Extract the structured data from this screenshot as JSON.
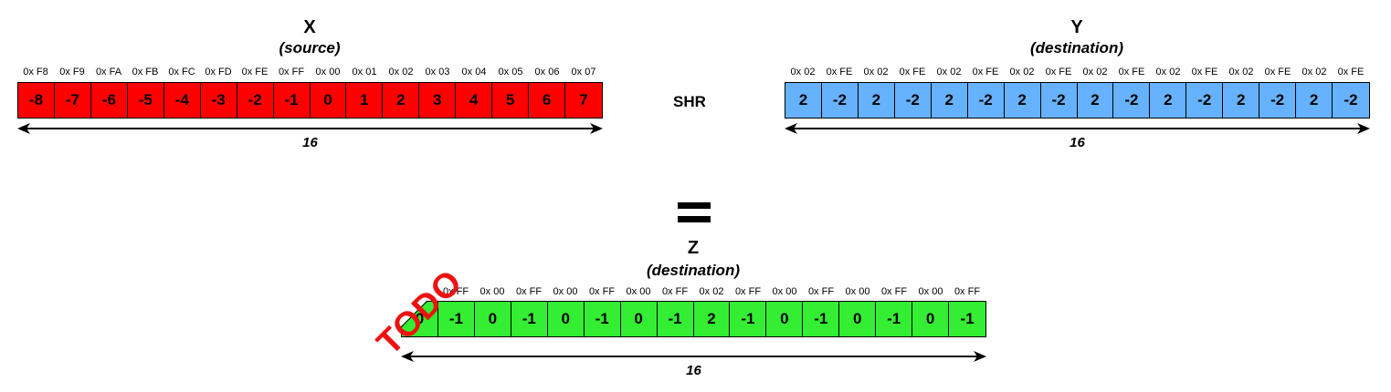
{
  "colors": {
    "x_fill": "#ff0000",
    "y_fill": "#66b2ff",
    "z_fill": "#33ee33",
    "todo": "#ee1111"
  },
  "x": {
    "title": "X",
    "subtitle": "(source)",
    "hex": [
      "0x F8",
      "0x F9",
      "0x FA",
      "0x FB",
      "0x FC",
      "0x FD",
      "0x FE",
      "0x FF",
      "0x 00",
      "0x 01",
      "0x 02",
      "0x 03",
      "0x 04",
      "0x 05",
      "0x 06",
      "0x 07"
    ],
    "values": [
      "-8",
      "-7",
      "-6",
      "-5",
      "-4",
      "-3",
      "-2",
      "-1",
      "0",
      "1",
      "2",
      "3",
      "4",
      "5",
      "6",
      "7"
    ],
    "count": "16"
  },
  "operation": "SHR",
  "y": {
    "title": "Y",
    "subtitle": "(destination)",
    "hex": [
      "0x 02",
      "0x FE",
      "0x 02",
      "0x FE",
      "0x 02",
      "0x FE",
      "0x 02",
      "0x FE",
      "0x 02",
      "0x FE",
      "0x 02",
      "0x FE",
      "0x 02",
      "0x FE",
      "0x 02",
      "0x FE"
    ],
    "values": [
      "2",
      "-2",
      "2",
      "-2",
      "2",
      "-2",
      "2",
      "-2",
      "2",
      "-2",
      "2",
      "-2",
      "2",
      "-2",
      "2",
      "-2"
    ],
    "count": "16"
  },
  "z": {
    "title": "Z",
    "subtitle": "(destination)",
    "hex": [
      "",
      "0x FF",
      "0x 00",
      "0x FF",
      "0x 00",
      "0x FF",
      "0x 00",
      "0x FF",
      "0x 02",
      "0x FF",
      "0x 00",
      "0x FF",
      "0x 00",
      "0x FF",
      "0x 00",
      "0x FF"
    ],
    "values": [
      "0",
      "-1",
      "0",
      "-1",
      "0",
      "-1",
      "0",
      "-1",
      "2",
      "-1",
      "0",
      "-1",
      "0",
      "-1",
      "0",
      "-1"
    ],
    "count": "16"
  },
  "todo_label": "TODO"
}
